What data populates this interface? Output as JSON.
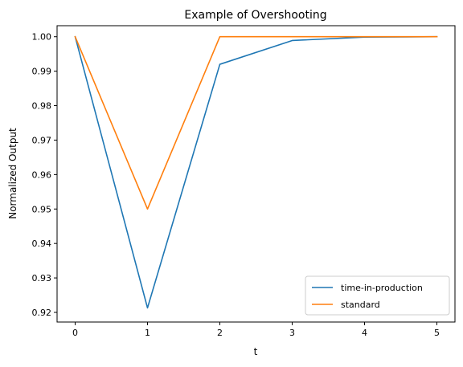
{
  "chart_data": {
    "type": "line",
    "title": "Example of Overshooting",
    "xlabel": "t",
    "ylabel": "Normalized Output",
    "xlim": [
      -0.25,
      5.25
    ],
    "ylim": [
      0.9172,
      1.0032
    ],
    "xticks": [
      0,
      1,
      2,
      3,
      4,
      5
    ],
    "xtick_labels": [
      "0",
      "1",
      "2",
      "3",
      "4",
      "5"
    ],
    "yticks": [
      0.92,
      0.93,
      0.94,
      0.95,
      0.96,
      0.97,
      0.98,
      0.99,
      1.0
    ],
    "ytick_labels": [
      "0.92",
      "0.93",
      "0.94",
      "0.95",
      "0.96",
      "0.97",
      "0.98",
      "0.99",
      "1.00"
    ],
    "grid": false,
    "legend_position": "lower-right",
    "x": [
      0,
      1,
      2,
      3,
      4,
      5
    ],
    "series": [
      {
        "name": "time-in-production",
        "color": "#1f77b4",
        "values": [
          1.0,
          0.9213,
          0.992,
          0.9989,
          0.9999,
          1.0
        ]
      },
      {
        "name": "standard",
        "color": "#ff7f0e",
        "values": [
          1.0,
          0.95,
          1.0,
          1.0,
          1.0,
          1.0
        ]
      }
    ]
  }
}
